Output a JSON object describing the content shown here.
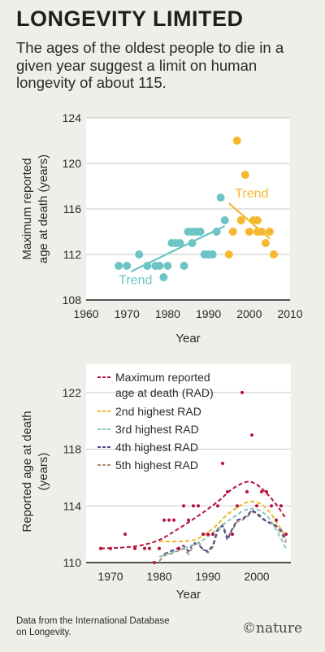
{
  "title": "LONGEVITY LIMITED",
  "subtitle": "The ages of the oldest people to die in a given year suggest a limit on human longevity of about 115.",
  "footnote": "Data from the International Database on Longevity.",
  "brand": "nature",
  "colors": {
    "background": "#efeee8",
    "teal": "#6cc4c4",
    "orange": "#f5b82e",
    "red": "#b5123b",
    "rad2": "#f0b429",
    "rad3": "#8cc9b4",
    "rad4": "#4b4b8c",
    "rad5": "#b08a7a"
  },
  "chart_data": [
    {
      "type": "scatter",
      "xlabel": "Year",
      "ylabel": "Maximum reported age at death (years)",
      "xlim": [
        1960,
        2010
      ],
      "ylim": [
        108,
        124
      ],
      "x_ticks": [
        1960,
        1970,
        1980,
        1990,
        2000,
        2010
      ],
      "y_ticks": [
        108,
        112,
        116,
        120,
        124
      ],
      "grid": "horizontal",
      "series": [
        {
          "name": "",
          "color": "teal",
          "points": [
            [
              1968,
              111
            ],
            [
              1970,
              111
            ],
            [
              1973,
              112
            ],
            [
              1975,
              111
            ],
            [
              1977,
              111
            ],
            [
              1978,
              111
            ],
            [
              1979,
              110
            ],
            [
              1980,
              111
            ],
            [
              1981,
              113
            ],
            [
              1982,
              113
            ],
            [
              1983,
              113
            ],
            [
              1984,
              111
            ],
            [
              1985,
              114
            ],
            [
              1986,
              113
            ],
            [
              1986,
              114
            ],
            [
              1987,
              114
            ],
            [
              1988,
              114
            ],
            [
              1989,
              112
            ],
            [
              1990,
              112
            ],
            [
              1991,
              112
            ],
            [
              1992,
              114
            ],
            [
              1993,
              117
            ],
            [
              1994,
              115
            ]
          ],
          "trend": {
            "label": "Trend",
            "from": [
              1971,
              110.5
            ],
            "to": [
              1994,
              114.5
            ]
          }
        },
        {
          "name": "",
          "color": "orange",
          "points": [
            [
              1995,
              112
            ],
            [
              1996,
              114
            ],
            [
              1997,
              122
            ],
            [
              1998,
              115
            ],
            [
              1999,
              119
            ],
            [
              2000,
              114
            ],
            [
              2001,
              115
            ],
            [
              2002,
              115
            ],
            [
              2002,
              114
            ],
            [
              2003,
              114
            ],
            [
              2004,
              113
            ],
            [
              2005,
              114
            ],
            [
              2006,
              112
            ]
          ],
          "trend": {
            "label": "Trend",
            "from": [
              1995,
              116.5
            ],
            "to": [
              2005,
              113.4
            ]
          }
        }
      ]
    },
    {
      "type": "line",
      "xlabel": "Year",
      "ylabel": "Reported age at death (years)",
      "xlim": [
        1965,
        2007
      ],
      "ylim": [
        110,
        124
      ],
      "x_ticks": [
        1970,
        1980,
        1990,
        2000
      ],
      "y_ticks": [
        110,
        114,
        118,
        122
      ],
      "grid": "horizontal",
      "legend": "top-left",
      "series": [
        {
          "name": "Maximum reported age at death (RAD)",
          "color": "red",
          "points": [
            [
              1968,
              111
            ],
            [
              1970,
              111
            ],
            [
              1973,
              112
            ],
            [
              1975,
              111
            ],
            [
              1977,
              111
            ],
            [
              1978,
              111
            ],
            [
              1979,
              110
            ],
            [
              1980,
              111
            ],
            [
              1981,
              113
            ],
            [
              1982,
              113
            ],
            [
              1983,
              113
            ],
            [
              1984,
              111
            ],
            [
              1985,
              114
            ],
            [
              1986,
              113
            ],
            [
              1987,
              114
            ],
            [
              1988,
              114
            ],
            [
              1989,
              112
            ],
            [
              1990,
              112
            ],
            [
              1991,
              112
            ],
            [
              1992,
              114
            ],
            [
              1993,
              117
            ],
            [
              1994,
              115
            ],
            [
              1995,
              112
            ],
            [
              1996,
              114
            ],
            [
              1997,
              122
            ],
            [
              1998,
              115
            ],
            [
              1999,
              119
            ],
            [
              2000,
              114
            ],
            [
              2001,
              115
            ],
            [
              2002,
              115
            ],
            [
              2003,
              114
            ],
            [
              2004,
              113
            ],
            [
              2005,
              114
            ],
            [
              2006,
              112
            ]
          ],
          "smooth": [
            [
              1968,
              111
            ],
            [
              1972,
              111.05
            ],
            [
              1976,
              111.2
            ],
            [
              1980,
              111.6
            ],
            [
              1984,
              112.4
            ],
            [
              1988,
              113.3
            ],
            [
              1992,
              114.3
            ],
            [
              1995,
              115.2
            ],
            [
              1998,
              115.7
            ],
            [
              2000,
              115.5
            ],
            [
              2002,
              114.9
            ],
            [
              2004,
              114.1
            ],
            [
              2006,
              113.1
            ]
          ]
        },
        {
          "name": "2nd highest RAD",
          "color": "rad2",
          "smooth": [
            [
              1980,
              111.5
            ],
            [
              1985,
              111.5
            ],
            [
              1988,
              111.7
            ],
            [
              1991,
              112.4
            ],
            [
              1994,
              113.4
            ],
            [
              1997,
              114.1
            ],
            [
              1999,
              114.3
            ],
            [
              2001,
              114.1
            ],
            [
              2003,
              113.4
            ],
            [
              2006,
              111.8
            ]
          ]
        },
        {
          "name": "3rd highest RAD",
          "color": "rad3",
          "smooth": [
            [
              1980,
              110.4
            ],
            [
              1984,
              110.9
            ],
            [
              1988,
              111.4
            ],
            [
              1991,
              112.1
            ],
            [
              1994,
              112.9
            ],
            [
              1997,
              113.6
            ],
            [
              1999,
              113.8
            ],
            [
              2001,
              113.6
            ],
            [
              2003,
              112.9
            ],
            [
              2006,
              111.0
            ]
          ]
        },
        {
          "name": "4th highest RAD",
          "color": "rad4",
          "points": [
            [
              1981,
              110.6
            ],
            [
              1983,
              110.9
            ],
            [
              1985,
              111.2
            ],
            [
              1986,
              110.8
            ],
            [
              1987,
              111.4
            ],
            [
              1988,
              111.3
            ],
            [
              1989,
              110.9
            ],
            [
              1990,
              110.8
            ],
            [
              1991,
              111.2
            ],
            [
              1992,
              112.4
            ],
            [
              1993,
              112.6
            ],
            [
              1994,
              111.6
            ],
            [
              1995,
              112.4
            ],
            [
              1996,
              113.0
            ],
            [
              1997,
              113.1
            ],
            [
              1998,
              113.3
            ],
            [
              1999,
              113.7
            ],
            [
              2000,
              113.5
            ],
            [
              2001,
              113.2
            ],
            [
              2002,
              112.9
            ],
            [
              2003,
              112.8
            ],
            [
              2004,
              112.6
            ],
            [
              2005,
              112.3
            ],
            [
              2006,
              111.6
            ]
          ]
        },
        {
          "name": "5th highest RAD",
          "color": "rad5",
          "points": [
            [
              1980,
              110.1
            ],
            [
              1981,
              110.5
            ],
            [
              1983,
              110.7
            ],
            [
              1985,
              111.0
            ],
            [
              1986,
              110.6
            ],
            [
              1987,
              111.2
            ],
            [
              1988,
              111.5
            ],
            [
              1989,
              110.9
            ],
            [
              1990,
              110.7
            ],
            [
              1991,
              111.1
            ],
            [
              1992,
              112.2
            ],
            [
              1993,
              112.7
            ],
            [
              1994,
              111.8
            ],
            [
              1995,
              112.3
            ],
            [
              1996,
              112.9
            ],
            [
              1997,
              113.0
            ],
            [
              1998,
              113.2
            ],
            [
              1999,
              113.6
            ],
            [
              2000,
              113.4
            ],
            [
              2001,
              113.1
            ],
            [
              2002,
              112.9
            ],
            [
              2003,
              112.7
            ],
            [
              2004,
              112.5
            ],
            [
              2005,
              112.1
            ],
            [
              2006,
              111.4
            ]
          ]
        }
      ]
    }
  ]
}
